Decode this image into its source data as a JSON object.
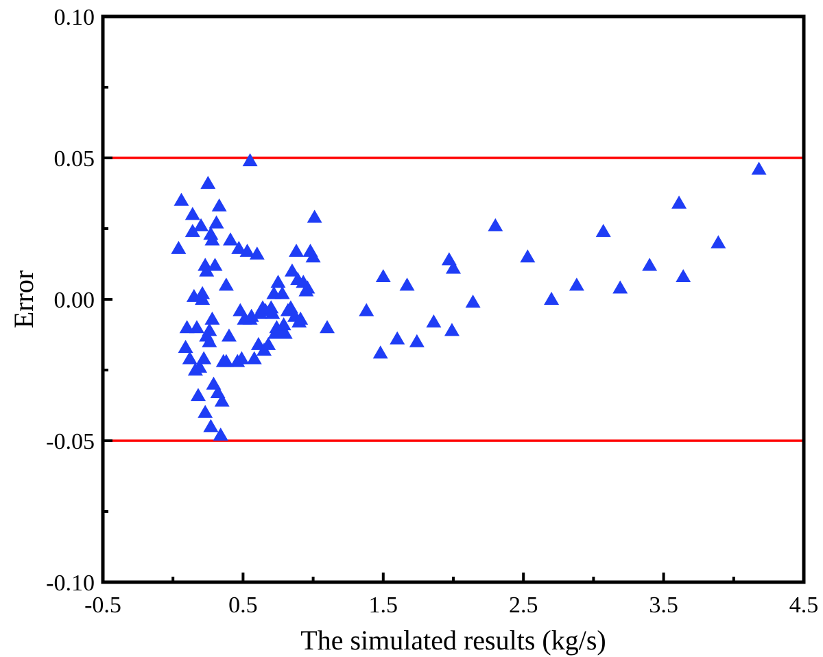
{
  "chart_data": {
    "type": "scatter",
    "title": "",
    "xlabel": "The simulated results (kg/s)",
    "ylabel": "Error",
    "xlim": [
      -0.5,
      4.5
    ],
    "ylim": [
      -0.1,
      0.1
    ],
    "x_ticks": [
      "-0.5",
      "0.5",
      "1.5",
      "2.5",
      "3.5",
      "4.5"
    ],
    "x_tick_values": [
      -0.5,
      0.5,
      1.5,
      2.5,
      3.5,
      4.5
    ],
    "y_ticks": [
      "0.10",
      "0.05",
      "0.00",
      "-0.05",
      "-0.10"
    ],
    "y_tick_values": [
      0.1,
      0.05,
      0.0,
      -0.05,
      -0.1
    ],
    "grid": false,
    "marker": "triangle",
    "marker_color": "#1f3df5",
    "reference_lines": [
      {
        "y": 0.05,
        "color": "#ff0000"
      },
      {
        "y": -0.05,
        "color": "#ff0000"
      }
    ],
    "points": [
      [
        0.04,
        0.018
      ],
      [
        0.06,
        0.035
      ],
      [
        0.09,
        -0.017
      ],
      [
        0.1,
        -0.01
      ],
      [
        0.12,
        -0.021
      ],
      [
        0.14,
        0.03
      ],
      [
        0.14,
        0.024
      ],
      [
        0.15,
        0.001
      ],
      [
        0.16,
        -0.025
      ],
      [
        0.17,
        -0.01
      ],
      [
        0.18,
        -0.034
      ],
      [
        0.19,
        -0.024
      ],
      [
        0.2,
        0.026
      ],
      [
        0.21,
        0.002
      ],
      [
        0.21,
        0.0
      ],
      [
        0.22,
        -0.021
      ],
      [
        0.23,
        -0.04
      ],
      [
        0.23,
        0.012
      ],
      [
        0.24,
        0.01
      ],
      [
        0.24,
        -0.013
      ],
      [
        0.25,
        0.041
      ],
      [
        0.26,
        -0.015
      ],
      [
        0.26,
        -0.011
      ],
      [
        0.27,
        0.023
      ],
      [
        0.27,
        -0.045
      ],
      [
        0.28,
        0.021
      ],
      [
        0.28,
        -0.007
      ],
      [
        0.29,
        -0.03
      ],
      [
        0.3,
        0.012
      ],
      [
        0.31,
        0.027
      ],
      [
        0.32,
        -0.033
      ],
      [
        0.33,
        0.033
      ],
      [
        0.34,
        -0.048
      ],
      [
        0.35,
        -0.036
      ],
      [
        0.36,
        -0.022
      ],
      [
        0.38,
        0.005
      ],
      [
        0.38,
        -0.022
      ],
      [
        0.4,
        -0.013
      ],
      [
        0.41,
        0.021
      ],
      [
        0.46,
        -0.022
      ],
      [
        0.47,
        0.018
      ],
      [
        0.48,
        -0.004
      ],
      [
        0.49,
        -0.021
      ],
      [
        0.51,
        -0.007
      ],
      [
        0.53,
        0.017
      ],
      [
        0.55,
        0.049
      ],
      [
        0.55,
        -0.007
      ],
      [
        0.56,
        -0.006
      ],
      [
        0.58,
        -0.021
      ],
      [
        0.6,
        0.016
      ],
      [
        0.61,
        -0.016
      ],
      [
        0.62,
        -0.005
      ],
      [
        0.64,
        -0.003
      ],
      [
        0.65,
        -0.018
      ],
      [
        0.66,
        -0.004
      ],
      [
        0.68,
        -0.016
      ],
      [
        0.7,
        -0.003
      ],
      [
        0.71,
        -0.005
      ],
      [
        0.72,
        0.002
      ],
      [
        0.73,
        -0.012
      ],
      [
        0.74,
        -0.01
      ],
      [
        0.75,
        0.006
      ],
      [
        0.76,
        -0.012
      ],
      [
        0.78,
        0.002
      ],
      [
        0.79,
        -0.009
      ],
      [
        0.8,
        -0.012
      ],
      [
        0.82,
        -0.004
      ],
      [
        0.84,
        -0.003
      ],
      [
        0.85,
        0.01
      ],
      [
        0.87,
        -0.006
      ],
      [
        0.88,
        0.017
      ],
      [
        0.89,
        0.007
      ],
      [
        0.9,
        -0.008
      ],
      [
        0.91,
        -0.007
      ],
      [
        0.93,
        0.006
      ],
      [
        0.95,
        0.003
      ],
      [
        0.96,
        0.004
      ],
      [
        0.98,
        0.017
      ],
      [
        1.0,
        0.015
      ],
      [
        1.01,
        0.029
      ],
      [
        1.1,
        -0.01
      ],
      [
        1.38,
        -0.004
      ],
      [
        1.48,
        -0.019
      ],
      [
        1.5,
        0.008
      ],
      [
        1.6,
        -0.014
      ],
      [
        1.67,
        0.005
      ],
      [
        1.74,
        -0.015
      ],
      [
        1.86,
        -0.008
      ],
      [
        1.97,
        0.014
      ],
      [
        1.99,
        -0.011
      ],
      [
        2.0,
        0.011
      ],
      [
        2.14,
        -0.001
      ],
      [
        2.3,
        0.026
      ],
      [
        2.53,
        0.015
      ],
      [
        2.7,
        0.0
      ],
      [
        2.88,
        0.005
      ],
      [
        3.07,
        0.024
      ],
      [
        3.19,
        0.004
      ],
      [
        3.4,
        0.012
      ],
      [
        3.61,
        0.034
      ],
      [
        3.64,
        0.008
      ],
      [
        3.89,
        0.02
      ],
      [
        4.18,
        0.046
      ]
    ]
  }
}
